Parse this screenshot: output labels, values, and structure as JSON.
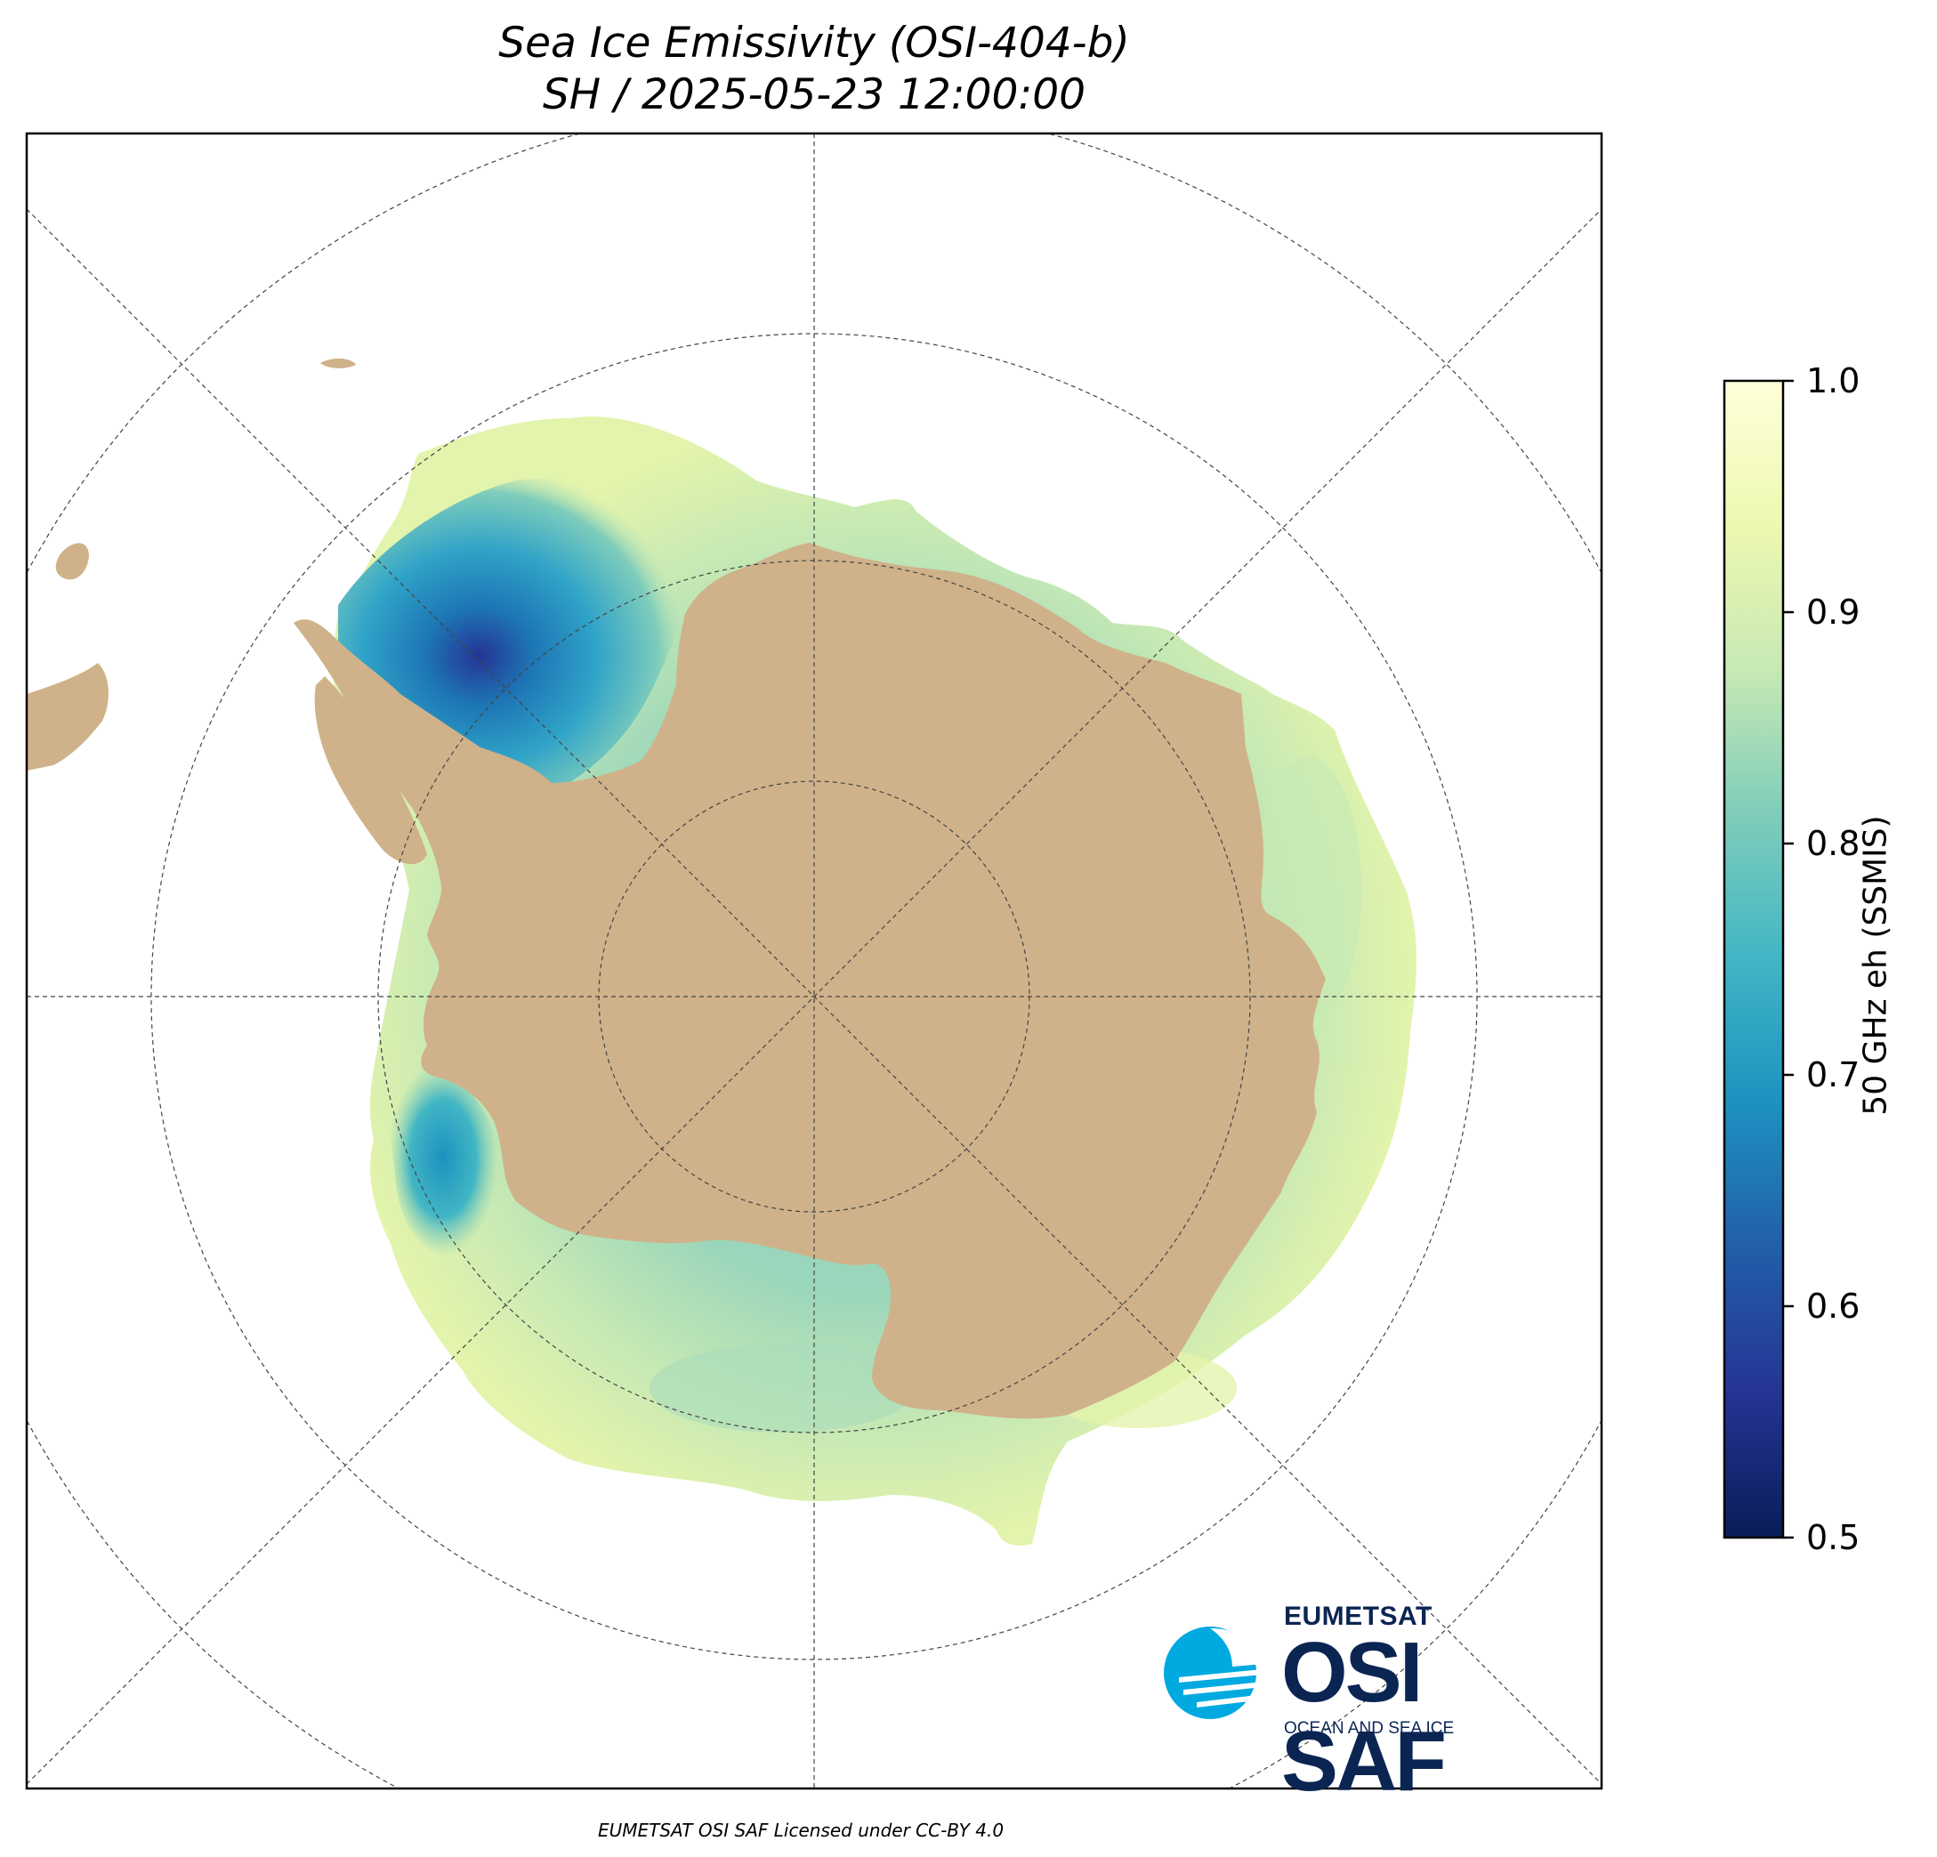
{
  "title": {
    "line1": "Sea Ice Emissivity (OSI-404-b)",
    "line2": "SH / 2025-05-23 12:00:00"
  },
  "colorbar": {
    "label": "50 GHz eh (SSMIS)",
    "min": 0.5,
    "max": 1.0,
    "ticks": [
      "0.5",
      "0.6",
      "0.7",
      "0.8",
      "0.9",
      "1.0"
    ],
    "colormap": [
      "#081d58",
      "#253494",
      "#225ea8",
      "#1d91c0",
      "#41b6c4",
      "#7fcdbb",
      "#c7e9b4",
      "#edf8b1",
      "#ffffd9"
    ]
  },
  "map": {
    "projection": "south-polar-stereographic",
    "land_color": "#cfb28a",
    "ocean_color": "#ffffff",
    "graticule": "dashed"
  },
  "logo": {
    "org": "EUMETSAT",
    "name": "OSI SAF",
    "tagline": "OCEAN AND SEA ICE",
    "mark_color": "#00a9e0"
  },
  "footer": "EUMETSAT OSI SAF Licensed under CC-BY 4.0"
}
